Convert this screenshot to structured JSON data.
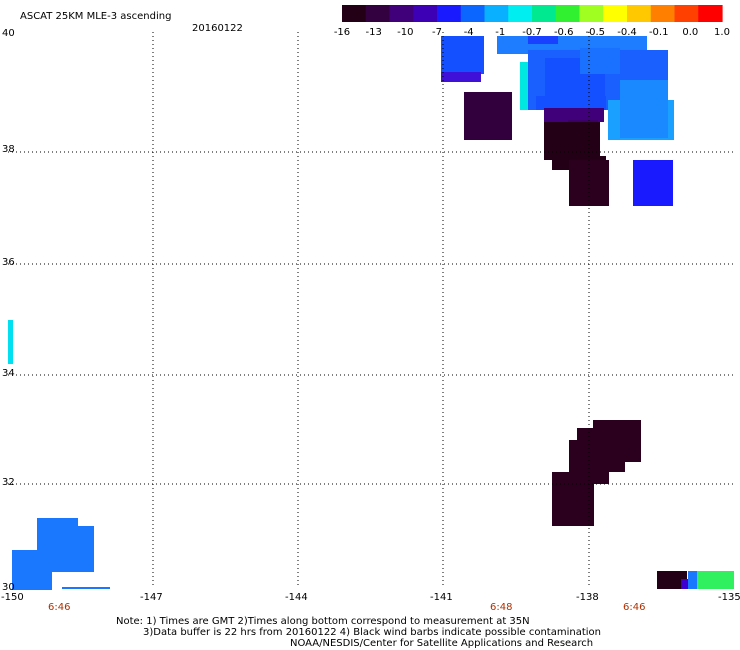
{
  "header": {
    "title": "ASCAT 25KM MLE-3 ascending",
    "date": "20160122"
  },
  "colorbar": {
    "labels": [
      "-16",
      "-13",
      "-10",
      "-7",
      "-4",
      "-1",
      "-0.7",
      "-0.6",
      "-0.5",
      "-0.4",
      "-0.1",
      "0.0",
      "1.0"
    ],
    "colors": [
      "#240016",
      "#330040",
      "#40007a",
      "#3e00b4",
      "#1a1aff",
      "#0a66ff",
      "#08b0ff",
      "#00eef0",
      "#00e890",
      "#30f030",
      "#a0ff20",
      "#ffff00",
      "#ffc800",
      "#ff8000",
      "#ff4000",
      "#ff0000"
    ]
  },
  "axes": {
    "lon_labels": [
      "-150",
      "-147",
      "-144",
      "-141",
      "-138",
      "-135"
    ],
    "lat_labels": [
      "40",
      "38",
      "36",
      "34",
      "32",
      "30"
    ],
    "time_labels": [
      "6:46",
      "6:48",
      "6:46"
    ]
  },
  "footer": {
    "line1": "Note: 1) Times are GMT 2)Times along bottom correspond to measurement at 35N",
    "line2": "3)Data buffer is 22 hrs from 20160122 4) Black wind barbs indicate possible contamination",
    "line3": "NOAA/NESDIS/Center for Satellite Applications and Research"
  }
}
